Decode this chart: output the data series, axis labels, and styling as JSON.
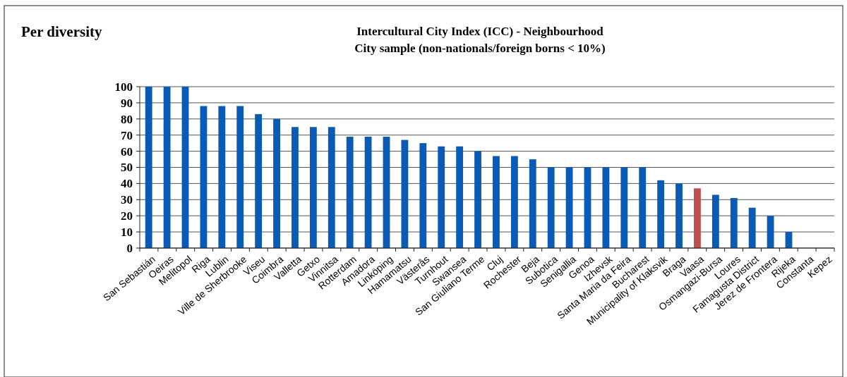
{
  "chart_data": {
    "type": "bar",
    "title": "Intercultural City Index (ICC) - Neighbourhood\nCity sample (non-nationals/foreign borns < 10%)",
    "annotations": [
      "Per diversity"
    ],
    "categories": [
      "San Sebastián",
      "Oeiras",
      "Melitopol",
      "Riga",
      "Lublin",
      "Ville de Sherbrooke",
      "Viseu",
      "Coimbra",
      "Valletta",
      "Getxo",
      "Vinnitsa",
      "Rotterdam",
      "Amadora",
      "Linköping",
      "Hamamatsu",
      "Västerås",
      "Turnhout",
      "Swansea",
      "San Giuliano Terme",
      "Cluj",
      "Rochester",
      "Beja",
      "Subotica",
      "Senigallia",
      "Genoa",
      "Izhevsk",
      "Santa Maria da Feira",
      "Bucharest",
      "Municipality of Klaksvik",
      "Braga",
      "Vaasa",
      "Osmangazi-Bursa",
      "Loures",
      "Famagusta District",
      "Jerez de Frontera",
      "Rijeka",
      "Constanta",
      "Kepez"
    ],
    "values": [
      100,
      100,
      100,
      88,
      88,
      88,
      83,
      80,
      75,
      75,
      75,
      69,
      69,
      69,
      67,
      65,
      63,
      63,
      60,
      57,
      57,
      55,
      50,
      50,
      50,
      50,
      50,
      50,
      42,
      40,
      37,
      33,
      31,
      25,
      20,
      10,
      0,
      0
    ],
    "colors": [
      "#0a5bb5",
      "#0a5bb5",
      "#0a5bb5",
      "#0a5bb5",
      "#0a5bb5",
      "#0a5bb5",
      "#0a5bb5",
      "#0a5bb5",
      "#0a5bb5",
      "#0a5bb5",
      "#0a5bb5",
      "#0a5bb5",
      "#0a5bb5",
      "#0a5bb5",
      "#0a5bb5",
      "#0a5bb5",
      "#0a5bb5",
      "#0a5bb5",
      "#0a5bb5",
      "#0a5bb5",
      "#0a5bb5",
      "#0a5bb5",
      "#0a5bb5",
      "#0a5bb5",
      "#0a5bb5",
      "#0a5bb5",
      "#0a5bb5",
      "#0a5bb5",
      "#0a5bb5",
      "#0a5bb5",
      "#c0504d",
      "#0a5bb5",
      "#0a5bb5",
      "#0a5bb5",
      "#0a5bb5",
      "#0a5bb5",
      "#0a5bb5",
      "#0a5bb5"
    ],
    "ylim": [
      0,
      100
    ],
    "yticks": [
      0,
      10,
      20,
      30,
      40,
      50,
      60,
      70,
      80,
      90,
      100
    ],
    "grid": "y"
  }
}
